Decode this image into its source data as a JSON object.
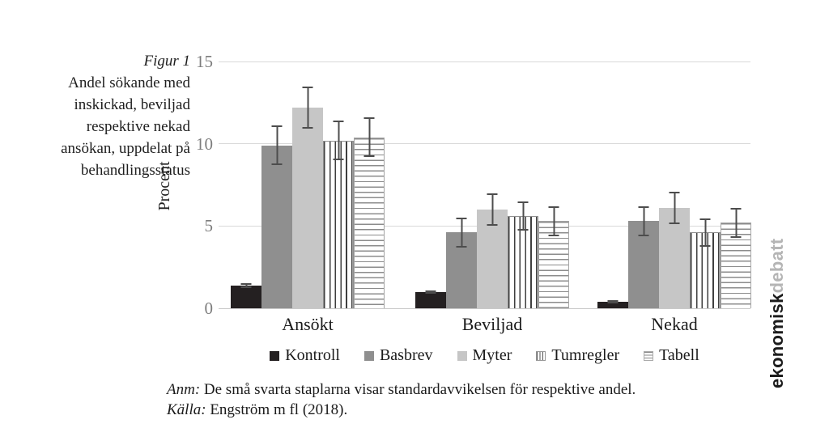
{
  "figure": {
    "label": "Figur 1",
    "caption_lines": [
      "Andel sökande med",
      "inskickad, beviljad",
      "respektive nekad",
      "ansökan, uppdelat på",
      "behandlingsstatus"
    ]
  },
  "chart_data": {
    "type": "bar",
    "title": "",
    "xlabel": "",
    "ylabel": "Procent",
    "ylim": [
      0,
      15
    ],
    "yticks": [
      0,
      5,
      10,
      15
    ],
    "grid": true,
    "legend_position": "bottom",
    "categories": [
      "Ansökt",
      "Beviljad",
      "Nekad"
    ],
    "series": [
      {
        "name": "Kontroll",
        "style": "solid",
        "color": "#242021",
        "values": [
          1.4,
          1.0,
          0.4
        ],
        "errors": [
          0.15,
          0.1,
          0.08
        ]
      },
      {
        "name": "Basbrev",
        "style": "solid",
        "color": "#8f8f8f",
        "values": [
          9.9,
          4.6,
          5.3
        ],
        "errors": [
          1.2,
          0.9,
          0.9
        ]
      },
      {
        "name": "Myter",
        "style": "solid",
        "color": "#c6c6c6",
        "values": [
          12.2,
          6.0,
          6.1
        ],
        "errors": [
          1.3,
          1.0,
          1.0
        ]
      },
      {
        "name": "Tumregler",
        "style": "vertical-stripes",
        "color": "#3f3f3f",
        "values": [
          10.2,
          5.6,
          4.6
        ],
        "errors": [
          1.2,
          0.9,
          0.85
        ]
      },
      {
        "name": "Tabell",
        "style": "horizontal-stripes",
        "color": "#8c8c8c",
        "values": [
          10.4,
          5.3,
          5.2
        ],
        "errors": [
          1.2,
          0.9,
          0.9
        ]
      }
    ],
    "error_bar_color": "#4d4d4d",
    "gridline_color": "#d9d9d9"
  },
  "notes": {
    "anm_label": "Anm:",
    "anm_text": "De små svarta staplarna visar standardavvikelsen för respektive andel.",
    "source_label": "Källa:",
    "source_text": "Engström m fl (2018)."
  },
  "brand": {
    "part1": "ekonomisk",
    "part2": "debatt"
  }
}
